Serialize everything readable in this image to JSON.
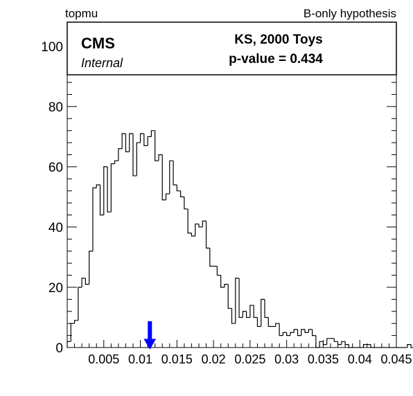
{
  "header": {
    "left_label": "topmu",
    "right_label": "B-only hypothesis"
  },
  "legend_box": {
    "experiment": "CMS",
    "status": "Internal",
    "test_label": "KS, 2000 Toys",
    "pvalue_label": "p-value = 0.434"
  },
  "colors": {
    "histogram_line": "#000000",
    "observed_arrow": "#0000ff",
    "frame": "#000000"
  },
  "chart_data": {
    "type": "bar",
    "histogram_style": "step",
    "x_range": [
      0,
      0.045
    ],
    "y_range": [
      0,
      108
    ],
    "x_ticks": [
      0.005,
      0.01,
      0.015,
      0.02,
      0.025,
      0.03,
      0.035,
      0.04,
      0.045
    ],
    "x_tick_labels": [
      "0.005",
      "0.01",
      "0.015",
      "0.02",
      "0.025",
      "0.03",
      "0.035",
      "0.04",
      "0.045"
    ],
    "y_ticks": [
      0,
      20,
      40,
      60,
      80,
      100
    ],
    "y_tick_labels": [
      "0",
      "20",
      "40",
      "60",
      "80",
      "100"
    ],
    "bin_width": 0.0005,
    "bin_counts": [
      2,
      8,
      9,
      20,
      23,
      21,
      32,
      53,
      54,
      44,
      60,
      45,
      61,
      62,
      66,
      71,
      65,
      71,
      57,
      68,
      71,
      67,
      70,
      72,
      62,
      64,
      49,
      51,
      62,
      54,
      52,
      50,
      46,
      38,
      37,
      41,
      40,
      42,
      33,
      27,
      27,
      24,
      20,
      21,
      13,
      8,
      23,
      10,
      12,
      10,
      14,
      10,
      7,
      16,
      10,
      7,
      7,
      8,
      4,
      5,
      4,
      5,
      6,
      4,
      6,
      5,
      6,
      4,
      0,
      2,
      1,
      3,
      3,
      2,
      1,
      2,
      1,
      0,
      0,
      0,
      0,
      1,
      1,
      0,
      0,
      0,
      0,
      0,
      0,
      0,
      0,
      0,
      0,
      1,
      0,
      0,
      0,
      0,
      0,
      0
    ],
    "observed_value": 0.0113,
    "grid": false
  }
}
